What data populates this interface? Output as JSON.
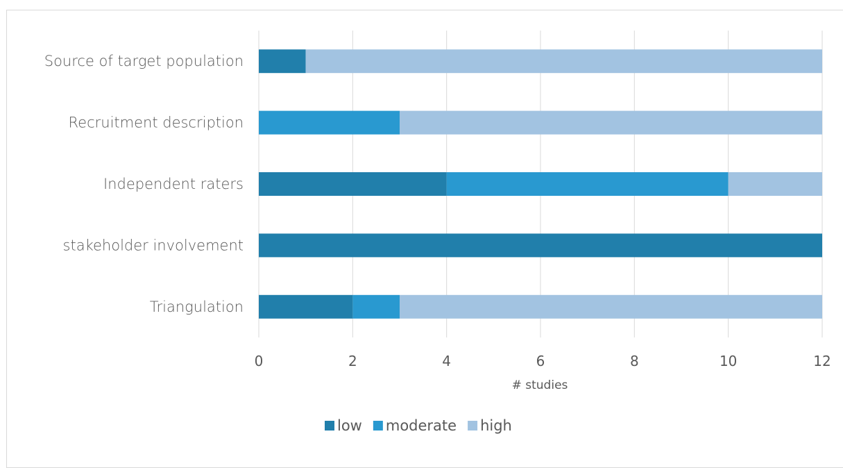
{
  "chart_data": {
    "type": "bar",
    "orientation": "horizontal",
    "stacked": true,
    "categories": [
      "Source of target population",
      "Recruitment description",
      "Independent raters",
      "stakeholder involvement",
      "Triangulation"
    ],
    "series": [
      {
        "name": "low",
        "color": "#217fab",
        "values": [
          1,
          0,
          4,
          12,
          2
        ]
      },
      {
        "name": "moderate",
        "color": "#2999d0",
        "values": [
          0,
          3,
          6,
          0,
          1
        ]
      },
      {
        "name": "high",
        "color": "#a2c3e1",
        "values": [
          11,
          9,
          2,
          0,
          9
        ]
      }
    ],
    "xlabel": "# studies",
    "ylabel": "",
    "xlim": [
      0,
      12
    ],
    "xticks": [
      "0",
      "2",
      "4",
      "6",
      "8",
      "10",
      "12"
    ],
    "grid": true,
    "legend_position": "bottom"
  }
}
